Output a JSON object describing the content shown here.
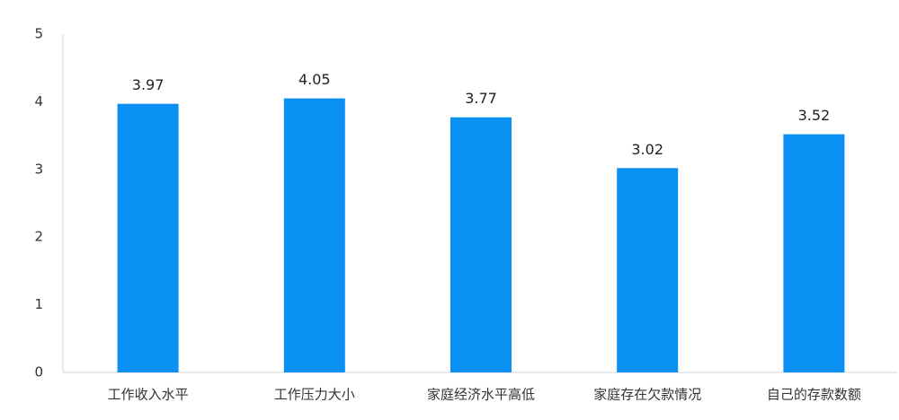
{
  "chart_data": {
    "type": "bar",
    "categories": [
      "工作收入水平",
      "工作压力大小",
      "家庭经济水平高低",
      "家庭存在欠款情况",
      "自己的存款数额"
    ],
    "values": [
      3.97,
      4.05,
      3.77,
      3.02,
      3.52
    ],
    "color": "#0a8ff2",
    "ylim": [
      0,
      5
    ],
    "yticks": [
      0,
      1,
      2,
      3,
      4,
      5
    ],
    "grid": false
  }
}
